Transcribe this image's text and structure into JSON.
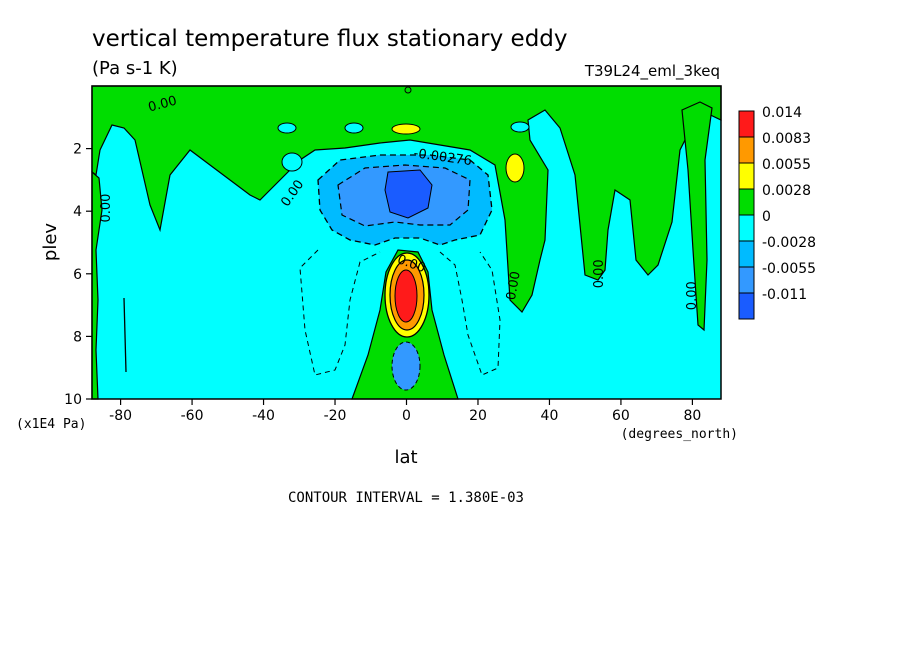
{
  "chart_data": {
    "type": "heatmap",
    "title": "vertical temperature flux stationary eddy",
    "units": "(Pa s-1 K)",
    "run_label": "T39L24_eml_3keq",
    "xlabel": "lat",
    "xunits": "(degrees_north)",
    "ylabel": "plev",
    "yunits": "(x1E4 Pa)",
    "xlim": [
      -88,
      88
    ],
    "ylim": [
      10,
      0
    ],
    "xticks": [
      -80,
      -60,
      -40,
      -20,
      0,
      20,
      40,
      60,
      80
    ],
    "yticks": [
      2,
      4,
      6,
      8,
      10
    ],
    "footer": "CONTOUR INTERVAL = 1.380E-03",
    "legend": {
      "placement": "right",
      "levels": [
        "0.014",
        "0.0083",
        "0.0055",
        "0.0028",
        "0",
        "-0.0028",
        "-0.0055",
        "-0.011"
      ],
      "colors": [
        "#ff1a1a",
        "#ff9900",
        "#ffff00",
        "#00dd00",
        "#00ffff",
        "#00bbff",
        "#3399ff",
        "#1a5cff"
      ]
    },
    "contour_labels": [
      {
        "text": "0.00",
        "lat": -68,
        "plev": 0.7,
        "angle": -15
      },
      {
        "text": "-0.00276",
        "lat": 10,
        "plev": 2.4,
        "angle": 8
      },
      {
        "text": "0.00",
        "lat": -31,
        "plev": 3.5,
        "angle": -55
      },
      {
        "text": "0.00",
        "lat": -83,
        "plev": 3.9,
        "angle": -90
      },
      {
        "text": "0.00",
        "lat": 1,
        "plev": 5.8,
        "angle": 20
      },
      {
        "text": "0.00",
        "lat": 31,
        "plev": 6.4,
        "angle": -80
      },
      {
        "text": "0.00",
        "lat": 55,
        "plev": 6.0,
        "angle": -90
      },
      {
        "text": "0.00",
        "lat": 81,
        "plev": 6.7,
        "angle": -90
      }
    ],
    "regions": [
      {
        "level": "positive_0_0.0028",
        "note": "near-zero positive band"
      },
      {
        "level": "strong_positive",
        "lat": 0,
        "plev": 7.0,
        "max": "0.014"
      },
      {
        "level": "negative",
        "lat": 0,
        "plev": 3.3,
        "min": "-0.011"
      },
      {
        "level": "negative",
        "lat": 0,
        "plev": 8.8,
        "min": "-0.0055"
      },
      {
        "level": "positive",
        "lat": 31,
        "plev": 2.6,
        "max": "0.0055"
      },
      {
        "level": "positive",
        "lat": 0,
        "plev": 1.1,
        "max": "0.0055"
      }
    ]
  }
}
